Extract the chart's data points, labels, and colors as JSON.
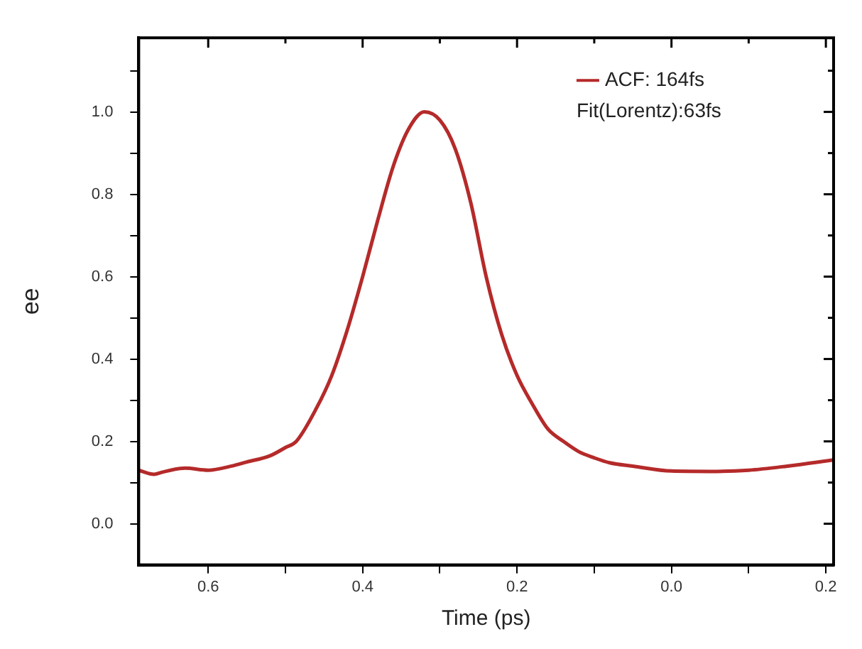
{
  "chart_data": {
    "type": "line",
    "xlabel": "Time (ps)",
    "ylabel": "ee",
    "xlim": [
      0.69,
      -0.21
    ],
    "ylim": [
      -0.1,
      1.18
    ],
    "xticks": [
      0.6,
      {
        "value": 0.5,
        "label": null
      },
      0.4,
      {
        "value": 0.3,
        "label": null
      },
      0.2,
      {
        "value": 0.1,
        "label": null
      },
      {
        "value": 0,
        "label": "0.0"
      },
      {
        "value": -0.1,
        "label": null
      },
      {
        "value": -0.2,
        "label": "0.2"
      }
    ],
    "yticks": [
      {
        "value": 0,
        "label": "0.0"
      },
      {
        "value": 0.1,
        "label": null
      },
      0.2,
      {
        "value": 0.3,
        "label": null
      },
      0.4,
      {
        "value": 0.5,
        "label": null
      },
      0.6,
      {
        "value": 0.7,
        "label": null
      },
      0.8,
      {
        "value": 0.9,
        "label": null
      },
      {
        "value": 1,
        "label": "1.0"
      },
      {
        "value": 1.1,
        "label": null
      }
    ],
    "grid": false,
    "legend": "top right",
    "marker": "none",
    "line_style": "solid",
    "annotations": [
      "Fit(Lorentz):63fs"
    ],
    "series": [
      {
        "name": "ACF: 164fs",
        "color": "#b52a2a",
        "x": [
          0.69,
          0.67,
          0.66,
          0.63,
          0.6,
          0.57,
          0.55,
          0.52,
          0.5,
          0.486,
          0.46,
          0.44,
          0.42,
          0.4,
          0.38,
          0.36,
          0.34,
          0.32,
          0.3,
          0.28,
          0.26,
          0.24,
          0.22,
          0.2,
          0.18,
          0.16,
          0.14,
          0.12,
          0.1,
          0.08,
          0.05,
          0.0,
          -0.05,
          -0.1,
          -0.15,
          -0.21
        ],
        "values": [
          0.13,
          0.12,
          0.125,
          0.135,
          0.13,
          0.14,
          0.15,
          0.165,
          0.185,
          0.2,
          0.28,
          0.36,
          0.47,
          0.6,
          0.74,
          0.87,
          0.96,
          1.0,
          0.98,
          0.91,
          0.78,
          0.6,
          0.46,
          0.36,
          0.29,
          0.23,
          0.2,
          0.175,
          0.16,
          0.148,
          0.14,
          0.128,
          0.127,
          0.13,
          0.14,
          0.155
        ]
      }
    ]
  }
}
